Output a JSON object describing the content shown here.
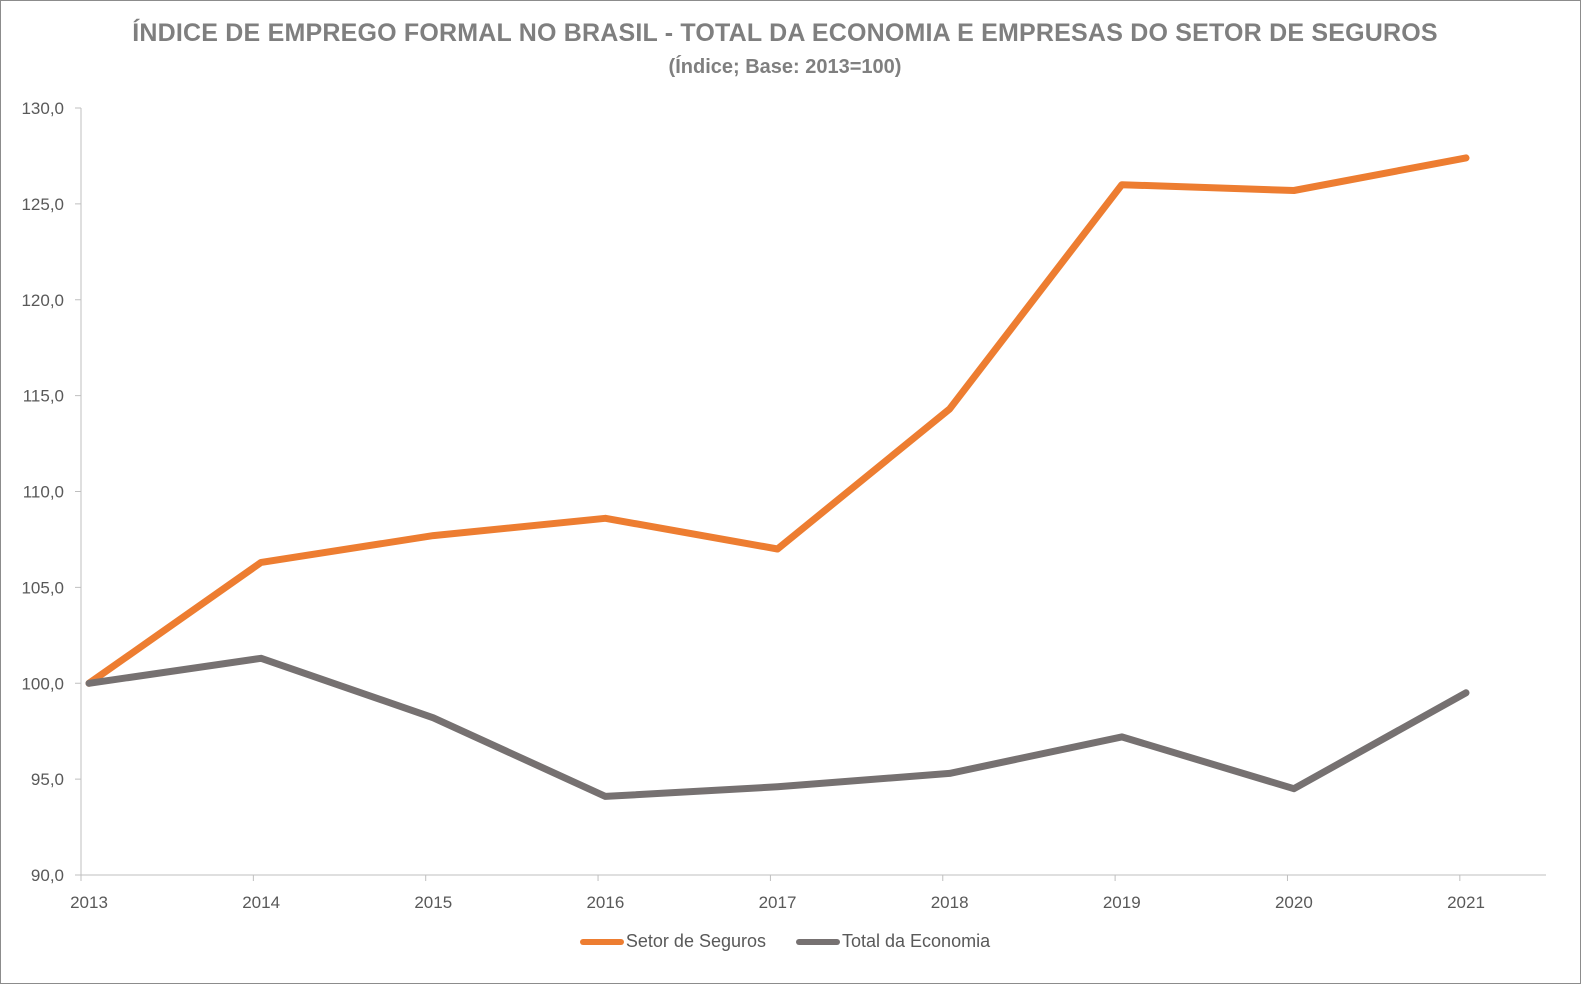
{
  "chart_data": {
    "type": "line",
    "title": "ÍNDICE DE EMPREGO FORMAL NO BRASIL - TOTAL DA ECONOMIA E EMPRESAS DO SETOR DE SEGUROS",
    "subtitle": "(Índice; Base: 2013=100)",
    "xlabel": "",
    "ylabel": "",
    "x": [
      "2013",
      "2014",
      "2015",
      "2016",
      "2017",
      "2018",
      "2019",
      "2020",
      "2021"
    ],
    "ylim": [
      90,
      130
    ],
    "yticks": [
      "90,0",
      "95,0",
      "100,0",
      "105,0",
      "110,0",
      "115,0",
      "120,0",
      "125,0",
      "130,0"
    ],
    "grid": false,
    "legend_position": "bottom",
    "series": [
      {
        "name": "Setor de Seguros",
        "color": "#ed7d31",
        "values": [
          100.0,
          106.3,
          107.7,
          108.6,
          107.0,
          114.3,
          126.0,
          125.7,
          127.4
        ]
      },
      {
        "name": "Total da Economia",
        "color": "#767171",
        "values": [
          100.0,
          101.3,
          98.2,
          94.1,
          94.6,
          95.3,
          97.2,
          94.5,
          99.5
        ]
      }
    ]
  }
}
